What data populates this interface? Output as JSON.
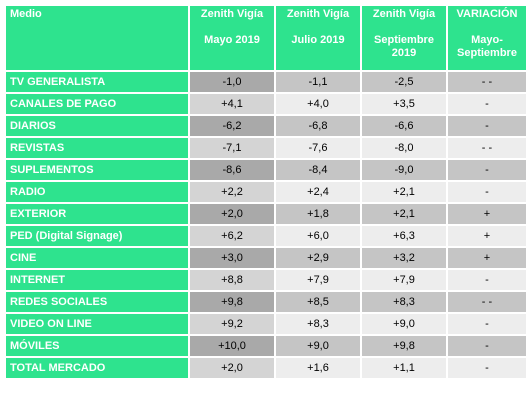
{
  "table": {
    "headers": {
      "medio": "Medio",
      "col1_line1": "Zenith Vigía",
      "col1_line2": "Mayo 2019",
      "col2_line1": "Zenith Vigía",
      "col2_line2": "Julio 2019",
      "col3_line1": "Zenith Vigía",
      "col3_line2": "Septiembre 2019",
      "col4_line1": "VARIACIÓN",
      "col4_line2": "Mayo-Septiembre"
    },
    "rows": [
      {
        "medio": "TV GENERALISTA",
        "mayo": "-1,0",
        "julio": "-1,1",
        "sept": "-2,5",
        "var": "- -"
      },
      {
        "medio": "CANALES DE PAGO",
        "mayo": "+4,1",
        "julio": "+4,0",
        "sept": "+3,5",
        "var": "-"
      },
      {
        "medio": "DIARIOS",
        "mayo": "-6,2",
        "julio": "-6,8",
        "sept": "-6,6",
        "var": "-"
      },
      {
        "medio": "REVISTAS",
        "mayo": "-7,1",
        "julio": "-7,6",
        "sept": "-8,0",
        "var": "- -"
      },
      {
        "medio": "SUPLEMENTOS",
        "mayo": "-8,6",
        "julio": "-8,4",
        "sept": "-9,0",
        "var": "-"
      },
      {
        "medio": "RADIO",
        "mayo": "+2,2",
        "julio": "+2,4",
        "sept": "+2,1",
        "var": "-"
      },
      {
        "medio": "EXTERIOR",
        "mayo": "+2,0",
        "julio": "+1,8",
        "sept": "+2,1",
        "var": "+"
      },
      {
        "medio": "PED (Digital Signage)",
        "mayo": "+6,2",
        "julio": "+6,0",
        "sept": "+6,3",
        "var": "+"
      },
      {
        "medio": "CINE",
        "mayo": "+3,0",
        "julio": "+2,9",
        "sept": "+3,2",
        "var": "+"
      },
      {
        "medio": "INTERNET",
        "mayo": "+8,8",
        "julio": "+7,9",
        "sept": "+7,9",
        "var": "-"
      },
      {
        "medio": "REDES SOCIALES",
        "mayo": "+9,8",
        "julio": "+8,5",
        "sept": "+8,3",
        "var": "- -"
      },
      {
        "medio": "VIDEO ON LINE",
        "mayo": "+9,2",
        "julio": "+8,3",
        "sept": "+9,0",
        "var": "-"
      },
      {
        "medio": "MÓVILES",
        "mayo": "+10,0",
        "julio": "+9,0",
        "sept": "+9,8",
        "var": "-"
      },
      {
        "medio": "TOTAL MERCADO",
        "mayo": "+2,0",
        "julio": "+1,6",
        "sept": "+1,1",
        "var": "-"
      }
    ]
  }
}
